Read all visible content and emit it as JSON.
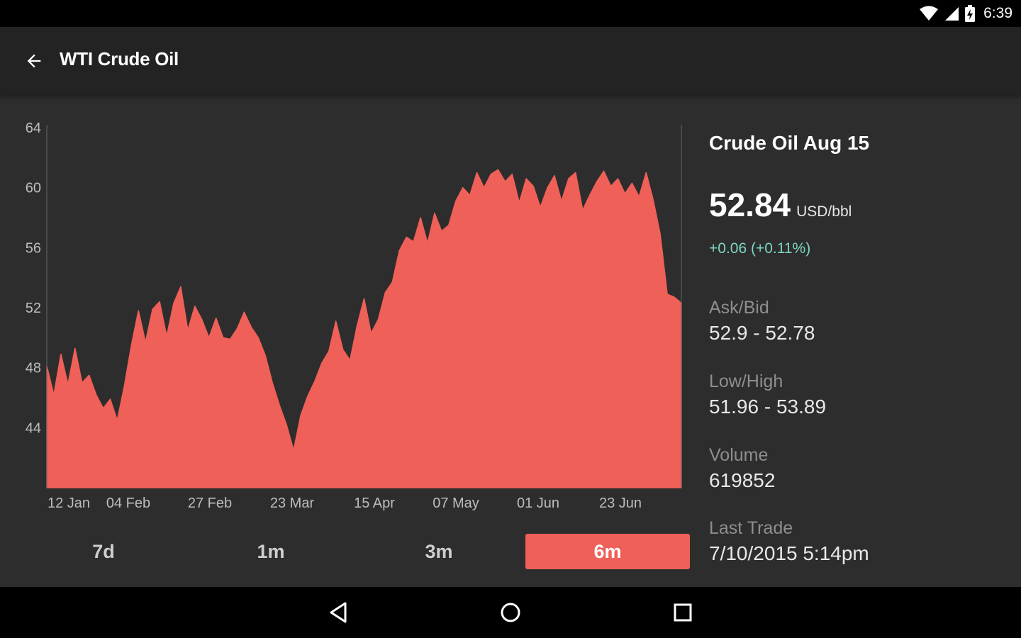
{
  "status_bar": {
    "time": "6:39",
    "icons": [
      "wifi-icon",
      "cell-signal-icon",
      "battery-charging-icon"
    ]
  },
  "app_bar": {
    "title": "WTI Crude Oil",
    "back_icon": "arrow-back-icon"
  },
  "colors": {
    "accent": "#ef6058",
    "change_positive": "#7cd6c4",
    "background": "#2d2d2d",
    "app_bar": "#232323"
  },
  "chart_data": {
    "type": "area",
    "title": "",
    "xlabel": "",
    "ylabel": "",
    "ylim": [
      40,
      64
    ],
    "y_ticks": [
      64,
      60,
      56,
      52,
      48,
      44
    ],
    "x_ticks": [
      "12 Jan",
      "04 Feb",
      "27 Feb",
      "23 Mar",
      "15 Apr",
      "07 May",
      "01 Jun",
      "23 Jun"
    ],
    "grid": false,
    "legend": "none",
    "series": [
      {
        "values": [
          48.1,
          46.2,
          48.9,
          46.9,
          49.3,
          47.0,
          47.5,
          46.2,
          45.3,
          45.9,
          44.5,
          46.8,
          49.5,
          51.8,
          49.7,
          51.9,
          52.4,
          50.1,
          52.3,
          53.4,
          50.5,
          52.1,
          51.2,
          50.0,
          51.3,
          50.0,
          49.9,
          50.6,
          51.7,
          50.7,
          50.0,
          48.8,
          47.0,
          45.5,
          44.2,
          42.5,
          44.8,
          46.1,
          47.1,
          48.3,
          49.1,
          51.1,
          49.2,
          48.5,
          50.8,
          52.6,
          50.3,
          51.2,
          53.0,
          53.7,
          55.8,
          56.7,
          56.4,
          58.0,
          56.3,
          58.3,
          57.1,
          57.5,
          59.1,
          60.0,
          59.5,
          61.0,
          60.0,
          60.9,
          61.2,
          60.4,
          60.9,
          59.0,
          60.6,
          60.1,
          58.7,
          60.0,
          60.8,
          59.1,
          60.6,
          61.0,
          58.5,
          59.5,
          60.4,
          61.1,
          60.1,
          60.6,
          59.6,
          60.3,
          59.4,
          61.0,
          59.2,
          56.9,
          52.9,
          52.7,
          52.3
        ]
      }
    ]
  },
  "range_tabs": {
    "items": [
      "7d",
      "1m",
      "3m",
      "6m"
    ],
    "selected": "6m"
  },
  "contract": {
    "title": "Crude Oil Aug 15",
    "price": "52.84",
    "unit": "USD/bbl",
    "change": "+0.06 (+0.11%)",
    "stats": [
      {
        "label": "Ask/Bid",
        "value": "52.9 - 52.78"
      },
      {
        "label": "Low/High",
        "value": "51.96 - 53.89"
      },
      {
        "label": "Volume",
        "value": "619852"
      },
      {
        "label": "Last Trade",
        "value": "7/10/2015 5:14pm"
      }
    ]
  },
  "nav_bar": {
    "icons": [
      "nav-back-icon",
      "nav-home-icon",
      "nav-recents-icon"
    ]
  }
}
